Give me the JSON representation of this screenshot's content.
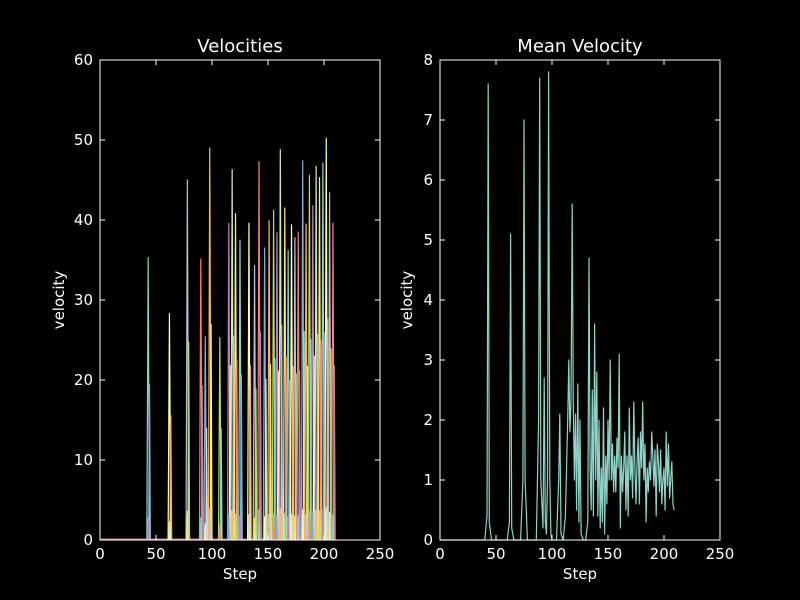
{
  "palette": [
    "#8dd3c7",
    "#feffb3",
    "#bfbbd9",
    "#fa8174",
    "#81b1d2",
    "#fdb462",
    "#b3de69",
    "#bc82bd",
    "#ccebc4",
    "#ffed6f"
  ],
  "chart_data": [
    {
      "type": "line",
      "title": "Velocities",
      "xlabel": "Step",
      "ylabel": "velocity",
      "xlim": [
        0,
        250
      ],
      "ylim": [
        0,
        60
      ],
      "xticks": [
        0,
        50,
        100,
        150,
        200,
        250
      ],
      "yticks": [
        0,
        10,
        20,
        30,
        40,
        50,
        60
      ],
      "grid": false,
      "x_end": 210,
      "spikes": [
        [
          43,
          35.3
        ],
        [
          62,
          28.3
        ],
        [
          78,
          45.0
        ],
        [
          90,
          35.1
        ],
        [
          94,
          25.4
        ],
        [
          98,
          49.0
        ],
        [
          107,
          25.3
        ],
        [
          115,
          39.6
        ],
        [
          118,
          46.3
        ],
        [
          121,
          40.8
        ],
        [
          125,
          37.5
        ],
        [
          133,
          39.6
        ],
        [
          138,
          34.3
        ],
        [
          142,
          47.3
        ],
        [
          147,
          36.5
        ],
        [
          151,
          39.9
        ],
        [
          155,
          41.2
        ],
        [
          158,
          38.4
        ],
        [
          161,
          48.8
        ],
        [
          165,
          41.5
        ],
        [
          168,
          36.2
        ],
        [
          171,
          39.4
        ],
        [
          174,
          37.8
        ],
        [
          177,
          38.5
        ],
        [
          181,
          47.4
        ],
        [
          184,
          39.5
        ],
        [
          187,
          45.6
        ],
        [
          190,
          41.8
        ],
        [
          193,
          46.7
        ],
        [
          196,
          45.3
        ],
        [
          199,
          47.1
        ],
        [
          202,
          50.2
        ],
        [
          205,
          43.4
        ],
        [
          208,
          39.6
        ]
      ]
    },
    {
      "type": "line",
      "title": "Mean Velocity",
      "xlabel": "Step",
      "ylabel": "velocity",
      "xlim": [
        0,
        250
      ],
      "ylim": [
        0,
        8
      ],
      "xticks": [
        0,
        50,
        100,
        150,
        200,
        250
      ],
      "yticks": [
        0,
        1,
        2,
        3,
        4,
        5,
        6,
        7,
        8
      ],
      "grid": false,
      "color": "#8dd3c7",
      "x": [
        0,
        40,
        42,
        43,
        44,
        46,
        60,
        62,
        63,
        64,
        66,
        72,
        74,
        75,
        76,
        78,
        86,
        88,
        89,
        90,
        92,
        93,
        94,
        95,
        96,
        97,
        98,
        99,
        100,
        104,
        106,
        107,
        108,
        110,
        112,
        114,
        115,
        116,
        117,
        118,
        119,
        120,
        121,
        122,
        123,
        124,
        125,
        126,
        128,
        130,
        132,
        133,
        134,
        135,
        136,
        137,
        138,
        139,
        140,
        141,
        142,
        143,
        144,
        145,
        146,
        147,
        148,
        149,
        150,
        151,
        152,
        153,
        154,
        155,
        156,
        157,
        158,
        159,
        160,
        161,
        162,
        163,
        164,
        165,
        166,
        167,
        168,
        169,
        170,
        171,
        172,
        173,
        174,
        175,
        176,
        177,
        178,
        179,
        180,
        181,
        182,
        183,
        184,
        185,
        186,
        187,
        188,
        189,
        190,
        191,
        192,
        193,
        194,
        195,
        196,
        197,
        198,
        199,
        200,
        201,
        202,
        203,
        204,
        205,
        206,
        207,
        208,
        209
      ],
      "y": [
        0,
        0,
        0.4,
        7.6,
        0.3,
        0,
        0,
        0.3,
        5.1,
        0.2,
        0,
        0,
        1.0,
        7.0,
        1.0,
        0,
        0,
        2.0,
        7.7,
        1.0,
        0.2,
        2.7,
        0.3,
        0.1,
        1.0,
        7.8,
        1.0,
        0.1,
        0,
        0,
        1.0,
        2.1,
        0.1,
        0,
        0.4,
        2.0,
        3.0,
        1.8,
        2.3,
        5.6,
        2.2,
        1.0,
        2.1,
        0.5,
        2.6,
        0.3,
        2.0,
        0.1,
        0,
        0,
        0.3,
        4.7,
        1.2,
        0.5,
        2.5,
        0.4,
        3.6,
        1.0,
        2.8,
        0.4,
        2.0,
        0.2,
        1.2,
        0.3,
        2.2,
        0.1,
        1.4,
        0.6,
        2.0,
        1.0,
        3.0,
        1.0,
        1.6,
        0.8,
        1.4,
        0.8,
        1.7,
        1.2,
        3.1,
        0.2,
        1.4,
        0.8,
        1.2,
        1.8,
        0.5,
        1.4,
        0.4,
        2.2,
        1.0,
        1.4,
        0.7,
        2.3,
        1.2,
        0.6,
        1.3,
        1.7,
        0.6,
        1.8,
        1.2,
        2.3,
        1.0,
        1.6,
        0.3,
        1.2,
        0.8,
        1.3,
        1.0,
        1.8,
        1.4,
        0.9,
        1.5,
        0.4,
        1.6,
        1.3,
        0.8,
        1.5,
        0.6,
        1.0,
        1.2,
        0.5,
        1.8,
        0.9,
        1.6,
        0.7,
        1.0,
        1.3,
        0.6,
        0.5
      ]
    }
  ]
}
